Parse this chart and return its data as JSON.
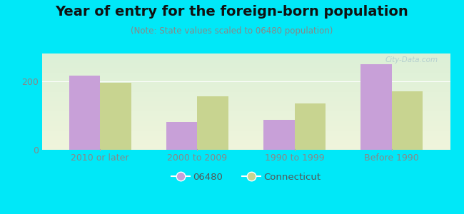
{
  "title": "Year of entry for the foreign-born population",
  "subtitle": "(Note: State values scaled to 06480 population)",
  "categories": [
    "2010 or later",
    "2000 to 2009",
    "1990 to 1999",
    "Before 1990"
  ],
  "values_06480": [
    215,
    80,
    88,
    248
  ],
  "values_ct": [
    195,
    155,
    135,
    170
  ],
  "color_06480": "#c8a0d8",
  "color_ct": "#c8d490",
  "background_outer": "#00e8f8",
  "background_inner": "#e8f5e2",
  "ylim": [
    0,
    280
  ],
  "yticks": [
    0,
    200
  ],
  "bar_width": 0.32,
  "legend_labels": [
    "06480",
    "Connecticut"
  ],
  "watermark": "City-Data.com",
  "title_fontsize": 14,
  "subtitle_fontsize": 8.5,
  "tick_fontsize": 9
}
